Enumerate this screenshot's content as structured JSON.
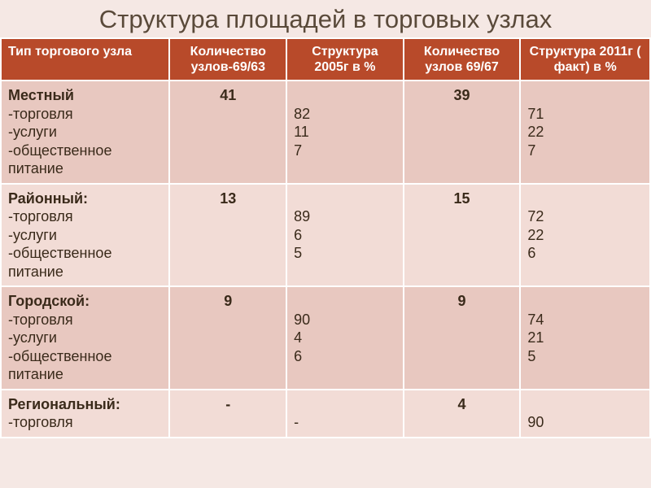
{
  "title": "Структура  площадей в торговых узлах",
  "columns": [
    "Тип торгового узла",
    "Количество узлов-69/63",
    "Структура 2005г в %",
    "Количество узлов 69/67",
    "Структура 2011г\n( факт) в %"
  ],
  "rows": [
    {
      "band": "a",
      "type_main": "Местный",
      "type_subs": [
        "-торговля",
        "-услуги",
        "-общественное питание"
      ],
      "count1": "41",
      "struct1_offset": "",
      "struct1": [
        "82",
        "11",
        "7"
      ],
      "count2": "39",
      "struct2_offset": "",
      "struct2": [
        "71",
        "22",
        "7"
      ]
    },
    {
      "band": "b",
      "type_main": "Районный:",
      "type_subs": [
        "-торговля",
        "-услуги",
        "-общественное питание"
      ],
      "count1": "13",
      "struct1_offset": "",
      "struct1": [
        "89",
        "6",
        "5"
      ],
      "count2": "15",
      "struct2_offset": "",
      "struct2": [
        "72",
        "22",
        "6"
      ]
    },
    {
      "band": "a",
      "type_main": "Городской:",
      "type_subs": [
        "-торговля",
        "-услуги",
        "-общественное питание"
      ],
      "count1": "9",
      "struct1_offset": "",
      "struct1": [
        "90",
        "4",
        "6"
      ],
      "count2": "9",
      "struct2_offset": "",
      "struct2": [
        "74",
        "21",
        "5"
      ]
    },
    {
      "band": "b",
      "type_main": "Региональный:",
      "type_subs": [
        "-торговля"
      ],
      "count1": "-",
      "struct1_offset": "",
      "struct1": [
        "-"
      ],
      "count2": "4",
      "struct2_offset": "",
      "struct2": [
        "90"
      ]
    }
  ]
}
